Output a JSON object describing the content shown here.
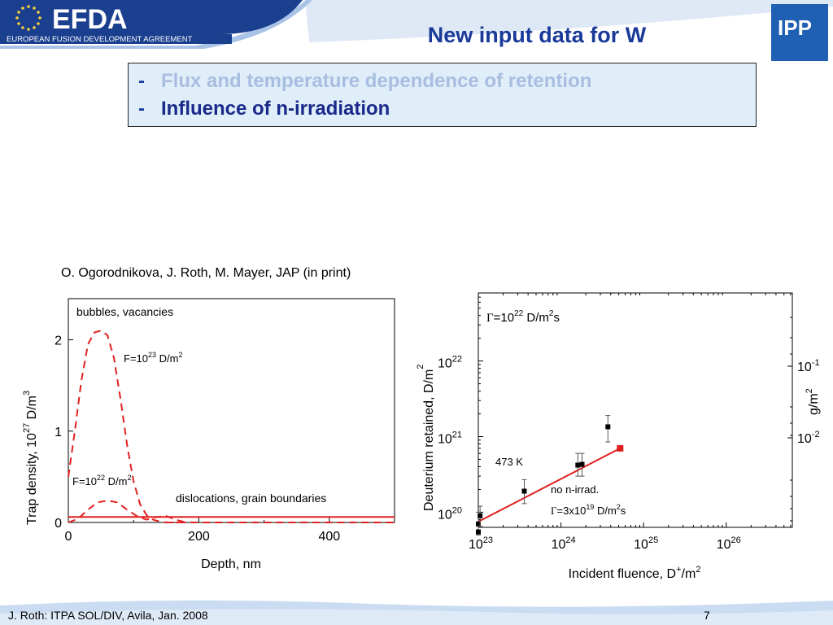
{
  "slide": {
    "title": "New input data for W",
    "bullets": [
      {
        "dash": "-",
        "text": "Flux and temperature dependence of retention",
        "color": "#a9bde0"
      },
      {
        "dash": "-",
        "text": "Influence of n-irradiation",
        "color": "#1a2a8a"
      }
    ],
    "citation": "O. Ogorodnikova, J. Roth, M. Mayer, JAP (in print)",
    "footer": "J. Roth: ITPA SOL/DIV, Avila, Jan. 2008",
    "page_number": "7"
  },
  "logos": {
    "efda_name": "EFDA",
    "efda_subtitle": "EUROPEAN FUSION DEVELOPMENT AGREEMENT",
    "ipp_name": "IPP"
  },
  "colors": {
    "title": "#1a3a9a",
    "accent_red": "#e02020",
    "box_bg": "#dfeef9",
    "logo_blue": "#1f5fb4"
  },
  "chart_data": [
    {
      "type": "line",
      "xlabel": "Depth, nm",
      "ylabel": {
        "main": "Trap density, 10",
        "sup": "27",
        "unit": " D/m",
        "unit_sup": "3"
      },
      "xlim": [
        0,
        500
      ],
      "ylim": [
        0,
        2.45
      ],
      "x_ticks": [
        "0",
        "200",
        "400"
      ],
      "y_ticks": [
        "0",
        "1",
        "2"
      ],
      "annotations": {
        "top": "bubbles, vacancies",
        "bottom": "dislocations, grain boundaries",
        "f_high": {
          "base": "F=10",
          "exp": "23",
          "unit": " D/m",
          "unit_exp": "2"
        },
        "f_low": {
          "base": "F=10",
          "exp": "22",
          "unit": " D/m",
          "unit_exp": "2"
        }
      },
      "series": [
        {
          "style": "dashed",
          "x": [
            0,
            10,
            20,
            30,
            40,
            50,
            60,
            70,
            80,
            90,
            100,
            110,
            120,
            130,
            140,
            150,
            160,
            170
          ],
          "y": [
            0.5,
            1.0,
            1.55,
            1.95,
            2.08,
            2.1,
            2.05,
            1.8,
            1.35,
            0.85,
            0.45,
            0.2,
            0.08,
            0.03,
            0.01,
            0.0,
            0.0,
            0.0
          ]
        },
        {
          "style": "dashed",
          "x": [
            0,
            15,
            30,
            45,
            60,
            75,
            90,
            105,
            120,
            135,
            150,
            165,
            180
          ],
          "y": [
            0.0,
            0.04,
            0.14,
            0.22,
            0.24,
            0.22,
            0.14,
            0.07,
            0.03,
            0.06,
            0.07,
            0.03,
            0.0
          ]
        },
        {
          "style": "dashed",
          "x": [
            150,
            500
          ],
          "y": [
            0.0,
            0.0
          ]
        },
        {
          "style": "solid",
          "x": [
            0,
            500
          ],
          "y": [
            0.06,
            0.06
          ]
        }
      ]
    },
    {
      "type": "scatter",
      "xlabel": {
        "main": "Incident fluence, D",
        "sup1": "+",
        "mid": "/m",
        "sup2": "2"
      },
      "ylabel": {
        "main": "Deuterium retained, D/m",
        "sup": "2"
      },
      "ylabel_right": {
        "main": "g/m",
        "sup": "2"
      },
      "x_log": [
        23,
        26.8
      ],
      "y_log": [
        19.8,
        22.9
      ],
      "x_ticks": [
        {
          "base": "10",
          "exp": "23"
        },
        {
          "base": "10",
          "exp": "24"
        },
        {
          "base": "10",
          "exp": "25"
        },
        {
          "base": "10",
          "exp": "26"
        }
      ],
      "y_ticks": [
        {
          "base": "10",
          "exp": "20"
        },
        {
          "base": "10",
          "exp": "21"
        },
        {
          "base": "10",
          "exp": "22"
        }
      ],
      "y_ticks_right": [
        {
          "base": "10",
          "exp": "-2"
        },
        {
          "base": "10",
          "exp": "-1"
        }
      ],
      "annotations": {
        "flux": {
          "sym": "Γ",
          "base": "=10",
          "exp": "22",
          "unit": " D/m",
          "unit_exp": "2",
          "tail": "s"
        },
        "temperature": "473 K",
        "no_irrad": "no n-irrad.",
        "flux2": {
          "sym": "Γ",
          "base": "=3x10",
          "exp": "19",
          "unit": " D/m",
          "unit_exp": "2",
          "tail": "s"
        }
      },
      "points": [
        {
          "x": 1e+23,
          "y": 7e+19,
          "err_low": 5e+19,
          "err_high": 1e+20
        },
        {
          "x": 1.05e+23,
          "y": 9e+19,
          "err_low": 6.5e+19,
          "err_high": 1.2e+20
        },
        {
          "x": 1e+23,
          "y": 5.5e+19,
          "err_low": 5e+19,
          "err_high": 6.5e+19
        },
        {
          "x": 3.6e+23,
          "y": 1.9e+20,
          "err_low": 1.3e+20,
          "err_high": 2.7e+20
        },
        {
          "x": 1.6e+24,
          "y": 4.2e+20,
          "err_low": 3e+20,
          "err_high": 6e+20
        },
        {
          "x": 1.8e+24,
          "y": 4.3e+20,
          "err_low": 3e+20,
          "err_high": 6e+20
        },
        {
          "x": 3.7e+24,
          "y": 1.35e+21,
          "err_low": 8.5e+20,
          "err_high": 1.9e+21
        }
      ],
      "highlight_point": {
        "x": 5.2e+24,
        "y": 7e+20,
        "color": "#e02020"
      },
      "fit_line": {
        "x": [
          1e+23,
          5.2e+24
        ],
        "y": [
          7.5e+19,
          7e+20
        ],
        "color": "#e02020"
      }
    }
  ]
}
